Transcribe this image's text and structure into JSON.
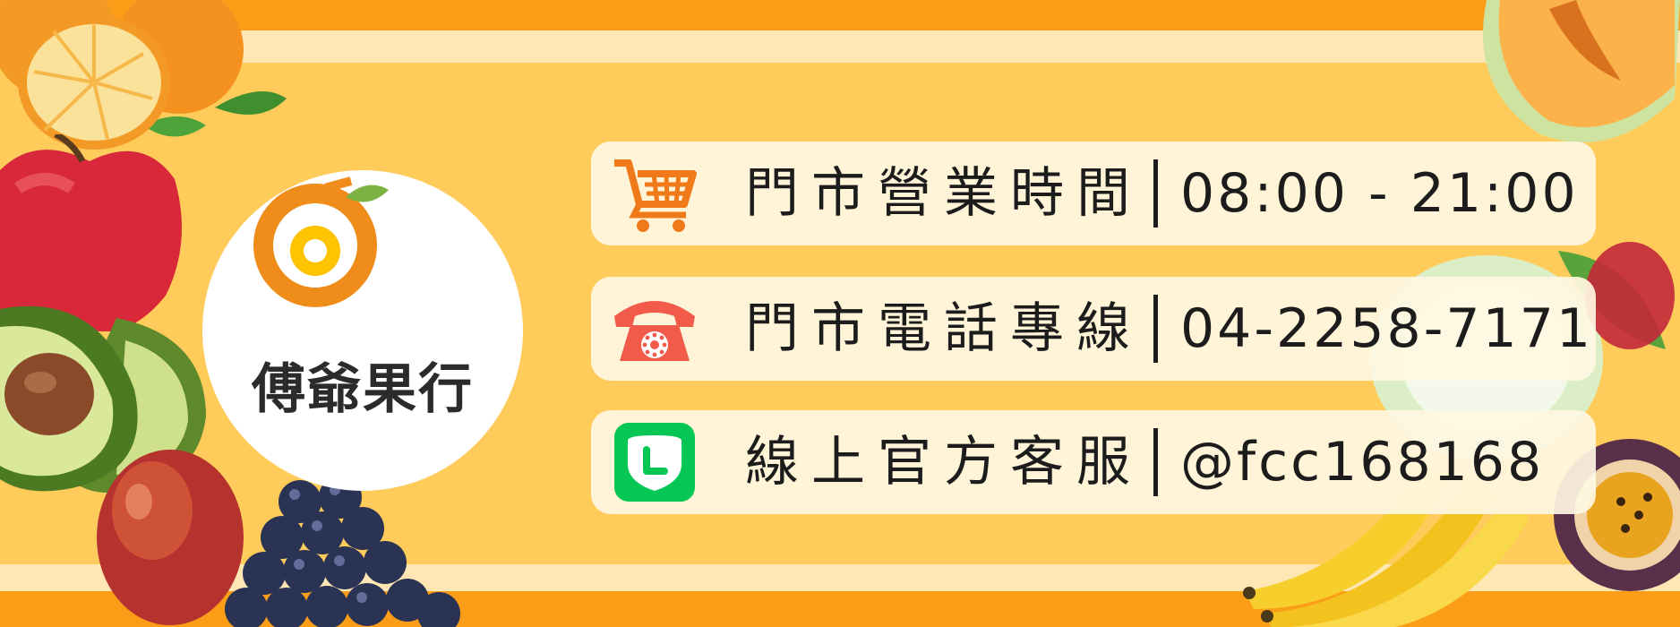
{
  "brand": {
    "logo_text": "傅爺果行",
    "colors": {
      "orange": "#f08c1a",
      "yellow": "#ffc400",
      "leaf": "#7cb342",
      "ink": "#2b2b2b"
    }
  },
  "colors": {
    "background": "#ffcc5c",
    "band_orange": "#fb9d16",
    "band_cream": "#ffe7b3",
    "row_background": "#fff7e2",
    "text": "#1c1c1c",
    "cart_icon": "#f07a1a",
    "phone_icon": "#f25a4a",
    "line_icon": "#06c755"
  },
  "info_rows": [
    {
      "icon": "shopping-cart-icon",
      "label": "門市營業時間",
      "value": "08:00 -  21:00"
    },
    {
      "icon": "telephone-icon",
      "label": "門市電話專線",
      "value": "04-2258-7171"
    },
    {
      "icon": "line-app-icon",
      "label": "線上官方客服",
      "value": "@fcc168168"
    }
  ],
  "decorations": [
    "orange-fruit-image",
    "apple-fruit-image",
    "avocado-fruit-image",
    "mango-fruit-image",
    "grapes-fruit-image",
    "melon-fruit-image",
    "guava-fruit-image",
    "banana-fruit-image",
    "passion-fruit-image"
  ]
}
